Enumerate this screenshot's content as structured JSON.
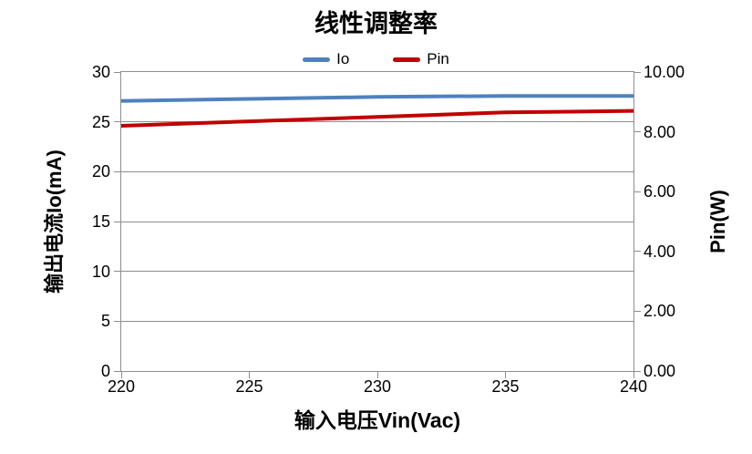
{
  "chart_data": {
    "type": "line",
    "title": "线性调整率",
    "xlabel": "输入电压Vin(Vac)",
    "ylabel_left": "输出电流Io(mA)",
    "ylabel_right": "Pin(W)",
    "x": [
      220,
      225,
      230,
      235,
      240
    ],
    "xticks": [
      "220",
      "225",
      "230",
      "235",
      "240"
    ],
    "yticks_left": [
      "0",
      "5",
      "10",
      "15",
      "20",
      "25",
      "30"
    ],
    "yticks_right": [
      "0.00",
      "2.00",
      "4.00",
      "6.00",
      "8.00",
      "10.00"
    ],
    "xlim": [
      220,
      240
    ],
    "ylim_left": [
      0,
      30
    ],
    "ylim_right": [
      0,
      10
    ],
    "grid": "horizontal, from left axis ticks",
    "legend_position": "top-center",
    "axis_color": "#8E8E8E",
    "background_color": "#FFFFFF",
    "series": [
      {
        "name": "Io",
        "axis": "left",
        "color": "#4F81BD",
        "values": [
          27.1,
          27.3,
          27.5,
          27.6,
          27.6
        ]
      },
      {
        "name": "Pin",
        "axis": "right",
        "color": "#C00000",
        "values": [
          8.2,
          8.35,
          8.5,
          8.65,
          8.7
        ]
      }
    ]
  }
}
